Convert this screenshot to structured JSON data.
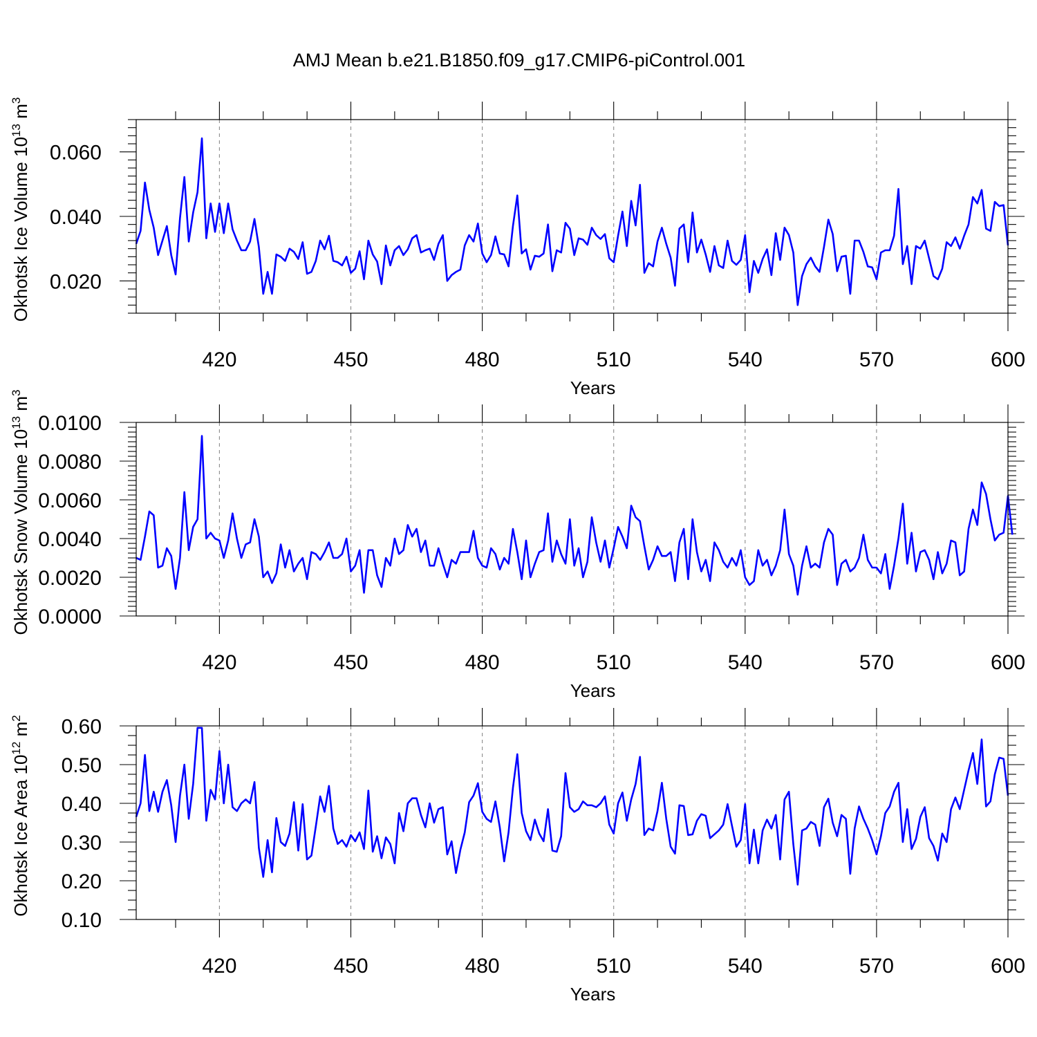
{
  "title": "AMJ Mean b.e21.B1850.f09_g17.CMIP6-piControl.001",
  "colors": {
    "series": "#0000ff",
    "grid": "#8a8a8a",
    "axis": "#000000"
  },
  "chart_data": [
    {
      "type": "line",
      "xlabel": "Years",
      "ylabel": "Okhotsk Ice Volume 10",
      "ylabel_sup": "13",
      "ylabel_unit": " m",
      "ylabel_unit_sup": "3",
      "xlim": [
        401,
        600
      ],
      "ylim": [
        0.01,
        0.07
      ],
      "xticks": [
        420,
        450,
        480,
        510,
        540,
        570,
        600
      ],
      "xtick_labels": [
        "420",
        "450",
        "480",
        "510",
        "540",
        "570",
        "600"
      ],
      "yticks": [
        0.02,
        0.04,
        0.06
      ],
      "ytick_labels": [
        "0.020",
        "0.040",
        "0.060"
      ],
      "grid": "vertical dashed at major x ticks",
      "x_start": 401,
      "values": [
        0.0315,
        0.0355,
        0.0505,
        0.042,
        0.0365,
        0.028,
        0.0325,
        0.037,
        0.028,
        0.022,
        0.0395,
        0.0522,
        0.0322,
        0.0412,
        0.0475,
        0.0642,
        0.0332,
        0.044,
        0.0352,
        0.044,
        0.0348,
        0.044,
        0.036,
        0.0325,
        0.0295,
        0.0295,
        0.0322,
        0.0392,
        0.0305,
        0.016,
        0.0228,
        0.016,
        0.0282,
        0.0275,
        0.0262,
        0.03,
        0.029,
        0.0268,
        0.032,
        0.0222,
        0.0228,
        0.0262,
        0.0325,
        0.0298,
        0.034,
        0.0262,
        0.0258,
        0.0248,
        0.0275,
        0.0225,
        0.0238,
        0.0292,
        0.0205,
        0.0325,
        0.0282,
        0.026,
        0.019,
        0.031,
        0.0248,
        0.0295,
        0.0308,
        0.028,
        0.0298,
        0.0332,
        0.0342,
        0.0288,
        0.0295,
        0.03,
        0.0265,
        0.0315,
        0.0342,
        0.02,
        0.0218,
        0.0228,
        0.0235,
        0.031,
        0.0342,
        0.0322,
        0.0378,
        0.0285,
        0.0258,
        0.028,
        0.0338,
        0.0285,
        0.0282,
        0.0245,
        0.037,
        0.0465,
        0.0285,
        0.0298,
        0.0235,
        0.0278,
        0.0275,
        0.0285,
        0.0375,
        0.023,
        0.0295,
        0.0288,
        0.038,
        0.0362,
        0.028,
        0.0332,
        0.0328,
        0.0312,
        0.0365,
        0.0342,
        0.033,
        0.0345,
        0.027,
        0.0258,
        0.034,
        0.0415,
        0.0308,
        0.0448,
        0.0372,
        0.0498,
        0.0225,
        0.0255,
        0.0245,
        0.0322,
        0.0365,
        0.0315,
        0.0272,
        0.0185,
        0.0362,
        0.0375,
        0.0258,
        0.0412,
        0.0288,
        0.0328,
        0.0282,
        0.0228,
        0.0308,
        0.0248,
        0.024,
        0.0325,
        0.0262,
        0.025,
        0.0265,
        0.0342,
        0.0165,
        0.0262,
        0.0225,
        0.0268,
        0.0298,
        0.0218,
        0.0348,
        0.0265,
        0.0365,
        0.0342,
        0.0288,
        0.0125,
        0.0215,
        0.0252,
        0.0272,
        0.0245,
        0.0228,
        0.0305,
        0.039,
        0.0345,
        0.023,
        0.0275,
        0.0278,
        0.016,
        0.0325,
        0.0325,
        0.029,
        0.0245,
        0.0242,
        0.0205,
        0.0288,
        0.0295,
        0.0295,
        0.034,
        0.0485,
        0.0252,
        0.0308,
        0.019,
        0.0308,
        0.03,
        0.0325,
        0.027,
        0.0215,
        0.0205,
        0.0238,
        0.032,
        0.0308,
        0.0335,
        0.03,
        0.034,
        0.0375,
        0.046,
        0.044,
        0.0482,
        0.0362,
        0.0355,
        0.0445,
        0.0432,
        0.0435,
        0.031
      ]
    },
    {
      "type": "line",
      "xlabel": "Years",
      "ylabel": "Okhotsk Snow Volume 10",
      "ylabel_sup": "13",
      "ylabel_unit": " m",
      "ylabel_unit_sup": "3",
      "xlim": [
        401,
        600
      ],
      "ylim": [
        0.0,
        0.01
      ],
      "xticks": [
        420,
        450,
        480,
        510,
        540,
        570,
        600
      ],
      "xtick_labels": [
        "420",
        "450",
        "480",
        "510",
        "540",
        "570",
        "600"
      ],
      "yticks": [
        0.0,
        0.002,
        0.004,
        0.006,
        0.008,
        0.01
      ],
      "ytick_labels": [
        "0.0000",
        "0.0020",
        "0.0040",
        "0.0060",
        "0.0080",
        "0.0100"
      ],
      "grid": "vertical dashed at major x ticks",
      "x_start": 401,
      "values": [
        0.003,
        0.0029,
        0.0041,
        0.0054,
        0.0052,
        0.0025,
        0.0026,
        0.0035,
        0.0031,
        0.0014,
        0.003,
        0.0064,
        0.0034,
        0.0046,
        0.005,
        0.0093,
        0.004,
        0.0043,
        0.004,
        0.0039,
        0.003,
        0.0039,
        0.0053,
        0.004,
        0.003,
        0.0037,
        0.0038,
        0.005,
        0.0041,
        0.002,
        0.0023,
        0.0017,
        0.0022,
        0.0037,
        0.0025,
        0.0034,
        0.0023,
        0.0027,
        0.003,
        0.0019,
        0.0033,
        0.0032,
        0.0029,
        0.0033,
        0.0038,
        0.003,
        0.003,
        0.0032,
        0.004,
        0.0023,
        0.0026,
        0.0034,
        0.0012,
        0.0034,
        0.0034,
        0.0021,
        0.0015,
        0.003,
        0.0026,
        0.004,
        0.0032,
        0.0034,
        0.0047,
        0.0041,
        0.0045,
        0.0033,
        0.0039,
        0.0026,
        0.0026,
        0.0035,
        0.0027,
        0.002,
        0.0029,
        0.0027,
        0.0033,
        0.0033,
        0.0033,
        0.0044,
        0.003,
        0.0026,
        0.0025,
        0.0035,
        0.0032,
        0.0024,
        0.003,
        0.0027,
        0.0045,
        0.0033,
        0.0019,
        0.0039,
        0.002,
        0.0027,
        0.0033,
        0.0034,
        0.0053,
        0.0028,
        0.0039,
        0.0032,
        0.0027,
        0.005,
        0.0026,
        0.0035,
        0.002,
        0.0028,
        0.0051,
        0.0038,
        0.0028,
        0.0039,
        0.0025,
        0.0035,
        0.0046,
        0.0041,
        0.0035,
        0.0057,
        0.0051,
        0.0049,
        0.0036,
        0.0024,
        0.0029,
        0.0036,
        0.0031,
        0.0031,
        0.0033,
        0.0018,
        0.0038,
        0.0045,
        0.0019,
        0.005,
        0.0033,
        0.0023,
        0.0029,
        0.0018,
        0.0038,
        0.0034,
        0.0028,
        0.0025,
        0.003,
        0.0026,
        0.0034,
        0.002,
        0.0016,
        0.0018,
        0.0034,
        0.0026,
        0.0029,
        0.0021,
        0.0026,
        0.0034,
        0.0055,
        0.0032,
        0.0026,
        0.0011,
        0.0026,
        0.0036,
        0.0025,
        0.0027,
        0.0025,
        0.0038,
        0.0045,
        0.0042,
        0.0016,
        0.0027,
        0.0029,
        0.0023,
        0.0025,
        0.003,
        0.0042,
        0.0029,
        0.0025,
        0.0025,
        0.0022,
        0.0032,
        0.0014,
        0.0026,
        0.004,
        0.0058,
        0.0027,
        0.0043,
        0.0023,
        0.0033,
        0.0034,
        0.0029,
        0.0019,
        0.0033,
        0.0022,
        0.0027,
        0.0039,
        0.0038,
        0.0021,
        0.0023,
        0.0045,
        0.0055,
        0.0047,
        0.0069,
        0.0063,
        0.005,
        0.0039,
        0.0042,
        0.0043,
        0.0062,
        0.0042
      ]
    },
    {
      "type": "line",
      "xlabel": "Years",
      "ylabel": "Okhotsk Ice Area 10",
      "ylabel_sup": "12",
      "ylabel_unit": " m",
      "ylabel_unit_sup": "2",
      "xlim": [
        401,
        600
      ],
      "ylim": [
        0.1,
        0.6
      ],
      "xticks": [
        420,
        450,
        480,
        510,
        540,
        570,
        600
      ],
      "xtick_labels": [
        "420",
        "450",
        "480",
        "510",
        "540",
        "570",
        "600"
      ],
      "yticks": [
        0.1,
        0.2,
        0.3,
        0.4,
        0.5,
        0.6
      ],
      "ytick_labels": [
        "0.10",
        "0.20",
        "0.30",
        "0.40",
        "0.50",
        "0.60"
      ],
      "grid": "vertical dashed at major x ticks",
      "x_start": 401,
      "values": [
        0.365,
        0.4,
        0.525,
        0.38,
        0.43,
        0.378,
        0.43,
        0.46,
        0.395,
        0.3,
        0.42,
        0.5,
        0.36,
        0.45,
        0.595,
        0.595,
        0.355,
        0.435,
        0.41,
        0.535,
        0.4,
        0.5,
        0.39,
        0.38,
        0.4,
        0.41,
        0.4,
        0.455,
        0.285,
        0.21,
        0.305,
        0.222,
        0.362,
        0.3,
        0.29,
        0.322,
        0.403,
        0.278,
        0.398,
        0.255,
        0.265,
        0.34,
        0.418,
        0.378,
        0.445,
        0.335,
        0.295,
        0.305,
        0.288,
        0.318,
        0.302,
        0.325,
        0.282,
        0.433,
        0.275,
        0.315,
        0.258,
        0.312,
        0.295,
        0.245,
        0.375,
        0.328,
        0.4,
        0.413,
        0.413,
        0.37,
        0.338,
        0.4,
        0.35,
        0.385,
        0.39,
        0.268,
        0.302,
        0.22,
        0.28,
        0.325,
        0.403,
        0.42,
        0.452,
        0.378,
        0.36,
        0.352,
        0.405,
        0.338,
        0.25,
        0.325,
        0.44,
        0.527,
        0.375,
        0.328,
        0.305,
        0.358,
        0.322,
        0.302,
        0.385,
        0.278,
        0.275,
        0.315,
        0.478,
        0.39,
        0.378,
        0.385,
        0.405,
        0.395,
        0.395,
        0.39,
        0.4,
        0.418,
        0.345,
        0.322,
        0.4,
        0.428,
        0.355,
        0.41,
        0.45,
        0.52,
        0.318,
        0.335,
        0.33,
        0.38,
        0.453,
        0.36,
        0.288,
        0.27,
        0.395,
        0.393,
        0.318,
        0.32,
        0.355,
        0.372,
        0.368,
        0.31,
        0.32,
        0.33,
        0.345,
        0.398,
        0.342,
        0.288,
        0.305,
        0.398,
        0.245,
        0.332,
        0.245,
        0.33,
        0.358,
        0.335,
        0.37,
        0.255,
        0.41,
        0.43,
        0.295,
        0.19,
        0.33,
        0.335,
        0.352,
        0.345,
        0.29,
        0.39,
        0.412,
        0.35,
        0.315,
        0.37,
        0.36,
        0.218,
        0.335,
        0.392,
        0.36,
        0.335,
        0.305,
        0.268,
        0.315,
        0.375,
        0.392,
        0.43,
        0.453,
        0.3,
        0.385,
        0.282,
        0.308,
        0.365,
        0.39,
        0.31,
        0.29,
        0.252,
        0.322,
        0.3,
        0.385,
        0.415,
        0.385,
        0.435,
        0.485,
        0.53,
        0.45,
        0.565,
        0.392,
        0.405,
        0.475,
        0.518,
        0.515,
        0.42
      ]
    }
  ]
}
